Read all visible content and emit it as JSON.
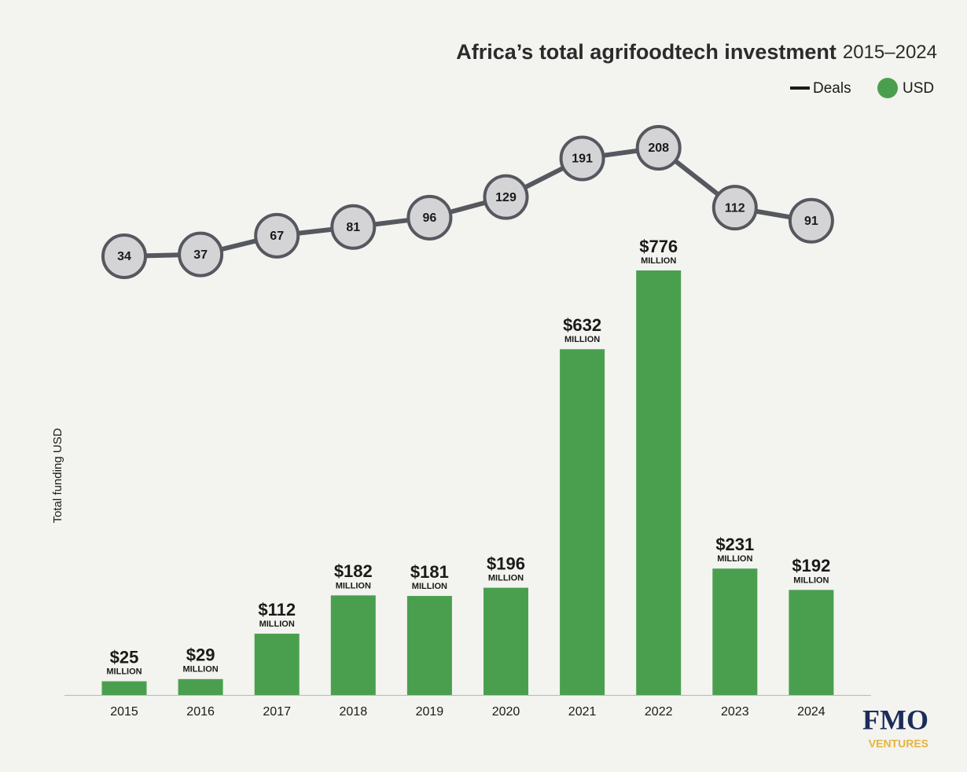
{
  "chart_data": {
    "type": "combo",
    "title": "Africa’s total agrifoodtech investment",
    "subtitle": "2015–2024",
    "ylabel": "Total funding USD",
    "categories": [
      "2015",
      "2016",
      "2017",
      "2018",
      "2019",
      "2020",
      "2021",
      "2022",
      "2023",
      "2024"
    ],
    "series": [
      {
        "name": "Deals",
        "type": "line",
        "color": "#55585e",
        "marker_fill": "#d4d4d6",
        "values": [
          34,
          37,
          67,
          81,
          96,
          129,
          191,
          208,
          112,
          91
        ]
      },
      {
        "name": "USD",
        "type": "bar",
        "color": "#4a9f4f",
        "values": [
          25,
          29,
          112,
          182,
          181,
          196,
          632,
          776,
          231,
          192
        ],
        "value_labels": [
          "$25",
          "$29",
          "$112",
          "$182",
          "$181",
          "$196",
          "$632",
          "$776",
          "$231",
          "$192"
        ]
      }
    ],
    "value_label_unit": "MILLION",
    "legend": "top-right"
  },
  "logo": {
    "name": "FMO",
    "tagline": "VENTURES"
  }
}
